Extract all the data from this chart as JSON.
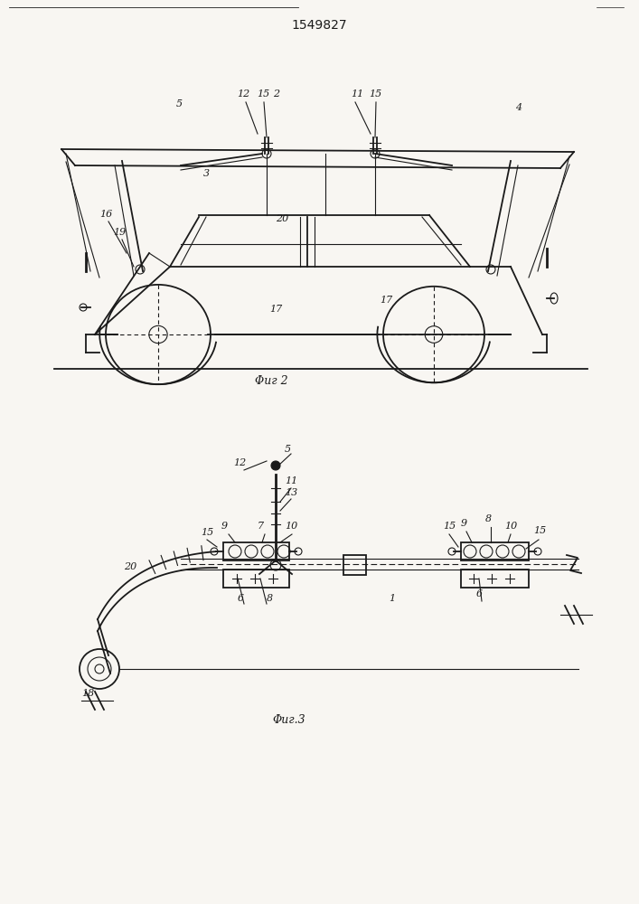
{
  "title": "1549827",
  "fig2_caption": "Φиг 2",
  "fig3_caption": "Φиг.3",
  "bg_color": "#f8f6f2",
  "line_color": "#1a1a1a"
}
